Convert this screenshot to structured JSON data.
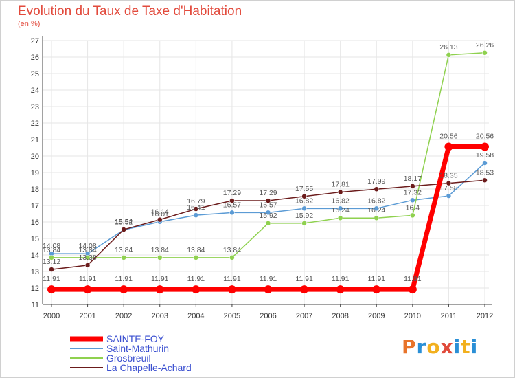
{
  "chart_data": {
    "type": "line",
    "title": "Evolution du Taux de Taxe d'Habitation",
    "subtitle": "(en %)",
    "x": [
      "2000",
      "2001",
      "2002",
      "2003",
      "2004",
      "2005",
      "2006",
      "2007",
      "2008",
      "2009",
      "2010",
      "2011",
      "2012"
    ],
    "ylim": [
      11,
      27
    ],
    "yticks": [
      11,
      12,
      13,
      14,
      15,
      16,
      17,
      18,
      19,
      20,
      21,
      22,
      23,
      24,
      25,
      26,
      27
    ],
    "grid": true,
    "legend_position": "bottom-left",
    "series": [
      {
        "name": "SAINTE-FOY",
        "color": "#ff0000",
        "values": [
          11.91,
          11.91,
          11.91,
          11.91,
          11.91,
          11.91,
          11.91,
          11.91,
          11.91,
          11.91,
          11.91,
          20.56,
          20.56
        ],
        "labels": [
          "11.91",
          "11.91",
          "11.91",
          "11.91",
          "11.91",
          "11.91",
          "11.91",
          "11.91",
          "11.91",
          "11.91",
          "11.91",
          "20.56",
          "20.56"
        ]
      },
      {
        "name": "Saint-Mathurin",
        "color": "#5b9bd5",
        "values": [
          14.08,
          14.08,
          15.52,
          16.01,
          16.41,
          16.57,
          16.57,
          16.82,
          16.82,
          16.82,
          17.32,
          17.58,
          19.58
        ],
        "labels": [
          "14.08",
          "14.08",
          "15.52",
          "16.01",
          "16.41",
          "16.57",
          "16.57",
          "16.82",
          "16.82",
          "16.82",
          "17.32",
          "17.58",
          "19.58"
        ]
      },
      {
        "name": "Grosbreuil",
        "color": "#8fd14f",
        "values": [
          13.84,
          13.84,
          13.84,
          13.84,
          13.84,
          13.84,
          15.92,
          15.92,
          16.24,
          16.24,
          16.4,
          26.13,
          26.26
        ],
        "labels": [
          "13.84",
          "13.84",
          "13.84",
          "13.84",
          "13.84",
          "13.84",
          "15.92",
          "15.92",
          "16.24",
          "16.24",
          "16.4",
          "26.13",
          "26.26"
        ]
      },
      {
        "name": "La Chapelle-Achard",
        "color": "#6b1b1b",
        "values": [
          13.12,
          13.38,
          15.54,
          16.14,
          16.79,
          17.29,
          17.29,
          17.55,
          17.81,
          17.99,
          18.17,
          18.35,
          18.53
        ],
        "labels": [
          "13.12",
          "13.38",
          "15.54",
          "16.14",
          "16.79",
          "17.29",
          "17.29",
          "17.55",
          "17.81",
          "17.99",
          "18.17",
          "18.35",
          "18.53"
        ]
      }
    ]
  },
  "logo": {
    "text": "Proxiti",
    "colors": [
      "#e8742a",
      "#2a8fd6",
      "#f2b01e",
      "#e04a3a",
      "#2a8fd6",
      "#f2b01e",
      "#2a8fd6"
    ]
  }
}
